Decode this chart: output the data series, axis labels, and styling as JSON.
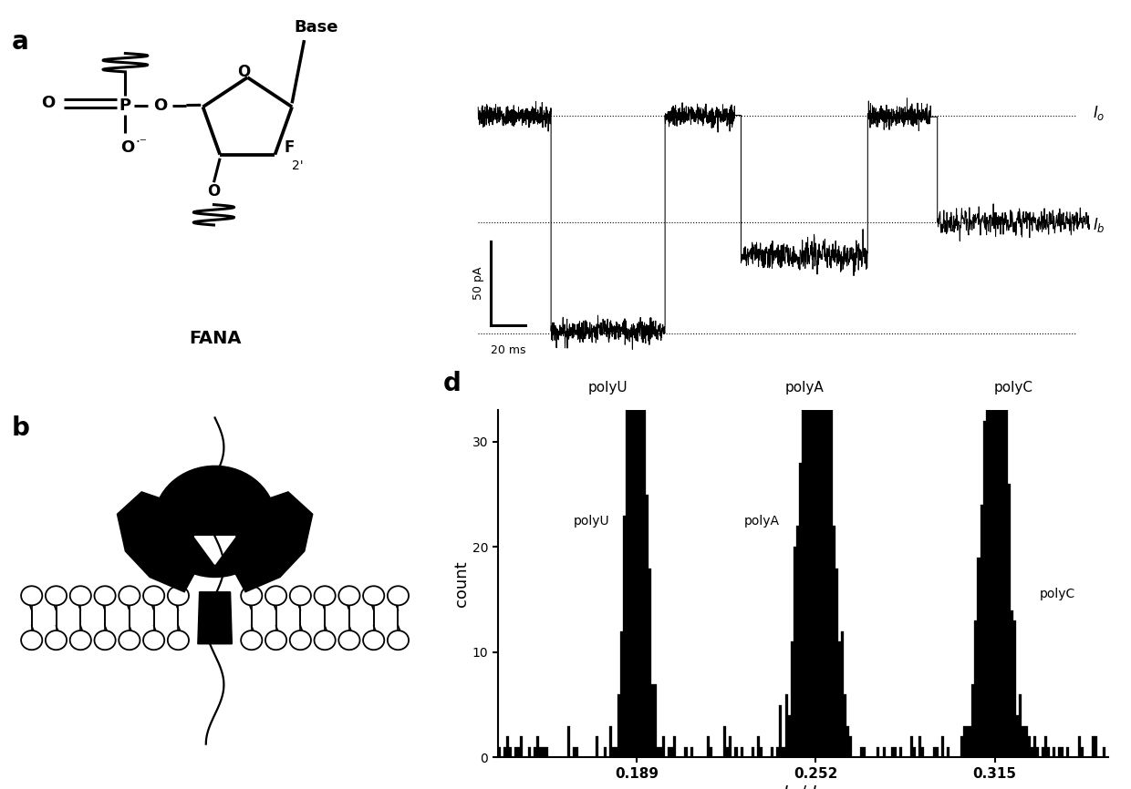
{
  "panel_label_fontsize": 20,
  "panel_label_fontweight": "bold",
  "background_color": "#ffffff",
  "Io_level": 0.82,
  "Ib_polyU": 0.05,
  "Ib_polyA": 0.32,
  "Ib_polyC": 0.44,
  "noise_std_io": 0.018,
  "noise_std_ib_U": 0.022,
  "noise_std_ib_A": 0.025,
  "noise_std_ib_C": 0.022,
  "peak_polyU": 0.189,
  "peak_polyA": 0.252,
  "peak_polyC": 0.315,
  "xticks_d": [
    0.189,
    0.252,
    0.315
  ],
  "yticks_d": [
    0,
    10,
    20,
    30
  ],
  "ylim_d": [
    0,
    33
  ],
  "xlim_d": [
    0.14,
    0.355
  ]
}
